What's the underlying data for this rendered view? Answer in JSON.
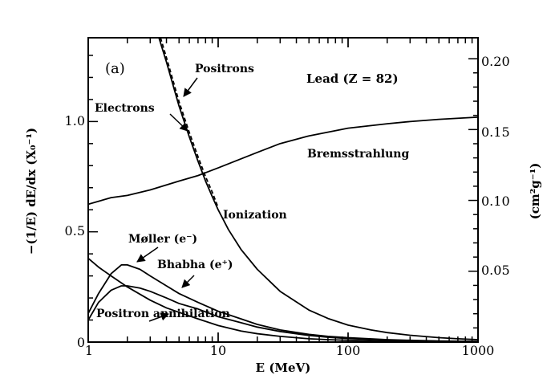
{
  "chart_data": {
    "type": "line",
    "panel_label": "(a)",
    "title": "Lead (Z = 82)",
    "xlabel": "E (MeV)",
    "ylabel_left": "−(1/E) dE/dx (X₀⁻¹)",
    "ylabel_right": "(cm²g⁻¹)",
    "xscale": "log",
    "xlim": [
      1,
      1000
    ],
    "ylim": [
      0,
      1.38
    ],
    "right_axis_ylim": [
      0,
      0.2148
    ],
    "x_tick_labels": [
      "1",
      "10",
      "100",
      "1000"
    ],
    "y_tick_labels_left": [
      "0",
      "0.5",
      "1.0"
    ],
    "y_tick_labels_right": [
      "0.05",
      "0.10",
      "0.15",
      "0.20"
    ],
    "series": [
      {
        "name": "Bremsstrahlung",
        "x": [
          1,
          1.5,
          2,
          3,
          5,
          7,
          10,
          20,
          30,
          50,
          100,
          200,
          300,
          500,
          1000
        ],
        "values": [
          0.625,
          0.655,
          0.665,
          0.69,
          0.73,
          0.755,
          0.79,
          0.86,
          0.9,
          0.935,
          0.97,
          0.99,
          1.0,
          1.01,
          1.02
        ]
      },
      {
        "name": "Ionization (Electrons)",
        "x": [
          3.5,
          4,
          5,
          6,
          7,
          8,
          9,
          10,
          12,
          15,
          20,
          30,
          50,
          70,
          100,
          150,
          200,
          300,
          500,
          700,
          1000
        ],
        "values": [
          1.38,
          1.27,
          1.07,
          0.93,
          0.82,
          0.73,
          0.66,
          0.6,
          0.51,
          0.42,
          0.33,
          0.23,
          0.145,
          0.107,
          0.077,
          0.055,
          0.043,
          0.031,
          0.02,
          0.015,
          0.011
        ]
      },
      {
        "name": "Positrons",
        "x": [
          3.6,
          4,
          5,
          6,
          7,
          8,
          9,
          10
        ],
        "values": [
          1.38,
          1.29,
          1.09,
          0.95,
          0.84,
          0.75,
          0.68,
          0.61
        ]
      },
      {
        "name": "Møller (e⁻)",
        "x": [
          1,
          1.2,
          1.5,
          1.8,
          2,
          2.5,
          3,
          4,
          5,
          7,
          10,
          15,
          20,
          30,
          50,
          70,
          100,
          200,
          300,
          500,
          1000
        ],
        "values": [
          0.13,
          0.22,
          0.31,
          0.35,
          0.35,
          0.33,
          0.3,
          0.255,
          0.22,
          0.18,
          0.14,
          0.105,
          0.08,
          0.055,
          0.035,
          0.026,
          0.02,
          0.011,
          0.008,
          0.005,
          0.003
        ]
      },
      {
        "name": "Bhabha (e⁺)",
        "x": [
          1,
          1.2,
          1.5,
          1.8,
          2,
          2.5,
          3,
          4,
          5,
          7,
          10,
          15,
          20,
          30,
          50,
          70,
          100,
          200,
          300,
          500,
          1000
        ],
        "values": [
          0.1,
          0.18,
          0.235,
          0.255,
          0.255,
          0.245,
          0.23,
          0.2,
          0.175,
          0.15,
          0.115,
          0.088,
          0.068,
          0.048,
          0.03,
          0.022,
          0.016,
          0.009,
          0.006,
          0.004,
          0.0025
        ]
      },
      {
        "name": "Positron annihilation",
        "x": [
          1,
          1.2,
          1.5,
          2,
          3,
          4,
          5,
          7,
          10,
          15,
          20,
          30,
          50,
          70,
          100,
          200,
          300,
          500,
          1000
        ],
        "values": [
          0.38,
          0.34,
          0.3,
          0.25,
          0.19,
          0.155,
          0.135,
          0.105,
          0.075,
          0.05,
          0.038,
          0.026,
          0.015,
          0.011,
          0.008,
          0.004,
          0.003,
          0.002,
          0.001
        ]
      }
    ],
    "annotations": [
      "Positrons",
      "Electrons",
      "Bremsstrahlung",
      "Ionization",
      "Møller (e⁻)",
      "Bhabha (e⁺)",
      "Positron annihilation"
    ],
    "grid": false,
    "legend": "none"
  }
}
